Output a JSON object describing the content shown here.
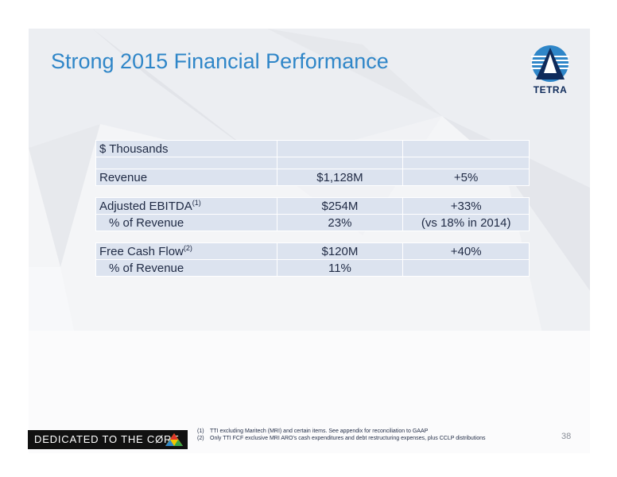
{
  "slide": {
    "title": "Strong 2015 Financial Performance",
    "logo_text": "TETRA"
  },
  "table": {
    "header": "$ Thousands",
    "rows": {
      "revenue": {
        "label": "Revenue",
        "value": "$1,128M",
        "change": "+5%"
      },
      "ebitda": {
        "label": "Adjusted EBITDA",
        "note": "(1)",
        "value": "$254M",
        "change": "+33%"
      },
      "ebitda_pct": {
        "label": "% of Revenue",
        "value": "23%",
        "change": "(vs 18% in 2014)"
      },
      "fcf": {
        "label": "Free Cash Flow",
        "note": "(2)",
        "value": "$120M",
        "change": "+40%"
      },
      "fcf_pct": {
        "label": "% of Revenue",
        "value": "11%",
        "change": ""
      }
    }
  },
  "footer": {
    "brand": "DEDICATED TO THE CØRE",
    "notes": [
      {
        "num": "(1)",
        "text": "TTI excluding Maritech (MRI) and certain items. See appendix for reconciliation to GAAP"
      },
      {
        "num": "(2)",
        "text": "Only TTI FCF exclusive MRI ARO's cash expenditures and debt restructuring expenses, plus CCLP distributions"
      }
    ],
    "page_number": "38"
  },
  "colors": {
    "title": "#2f86c8",
    "table_band": "#dce3ef",
    "logo_navy": "#0f2b5b",
    "logo_blue": "#2f86c8"
  }
}
